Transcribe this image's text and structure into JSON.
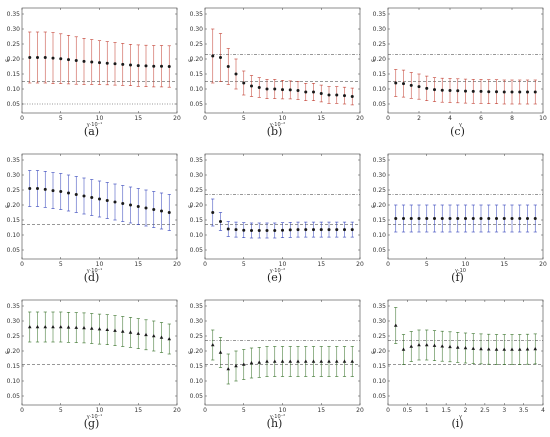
{
  "panels": [
    {
      "caption": "(a)"
    },
    {
      "caption": "(b)"
    },
    {
      "caption": "(c)"
    },
    {
      "caption": "(d)"
    },
    {
      "caption": "(e)"
    },
    {
      "caption": "(f)"
    },
    {
      "caption": "(g)"
    },
    {
      "caption": "(h)"
    },
    {
      "caption": "(i)"
    }
  ],
  "chart_data": [
    {
      "type": "scatter",
      "color": "#c0392b",
      "marker": "circle",
      "ylabel": "ε",
      "xlabel": "γ·10⁻¹",
      "xlim": [
        0,
        20
      ],
      "ylim": [
        0.02,
        0.37
      ],
      "xticks": [
        0,
        5,
        10,
        15,
        20
      ],
      "yticks": [
        0.05,
        0.1,
        0.15,
        0.2,
        0.25,
        0.3,
        0.35
      ],
      "hlines": [
        {
          "y": 0.125,
          "style": "dashed"
        },
        {
          "y": 0.05,
          "style": "dotted"
        }
      ],
      "series": [
        {
          "x": [
            1,
            2,
            3,
            4,
            5,
            6,
            7,
            8,
            9,
            10,
            11,
            12,
            13,
            14,
            15,
            16,
            17,
            18,
            19
          ],
          "y": [
            0.205,
            0.205,
            0.205,
            0.203,
            0.201,
            0.198,
            0.195,
            0.192,
            0.19,
            0.188,
            0.186,
            0.184,
            0.182,
            0.18,
            0.178,
            0.177,
            0.176,
            0.176,
            0.175
          ],
          "err": [
            0.085,
            0.085,
            0.085,
            0.085,
            0.083,
            0.081,
            0.079,
            0.077,
            0.075,
            0.073,
            0.072,
            0.071,
            0.07,
            0.069,
            0.069,
            0.069,
            0.069,
            0.069,
            0.069
          ]
        }
      ]
    },
    {
      "type": "scatter",
      "color": "#c0392b",
      "marker": "circle",
      "ylabel": "ε",
      "xlabel": "γ·10⁻²",
      "xlim": [
        0,
        20
      ],
      "ylim": [
        0.02,
        0.37
      ],
      "xticks": [
        0,
        5,
        10,
        15,
        20
      ],
      "yticks": [
        0.05,
        0.1,
        0.15,
        0.2,
        0.25,
        0.3,
        0.35
      ],
      "hlines": [
        {
          "y": 0.215,
          "style": "dashdot"
        },
        {
          "y": 0.125,
          "style": "dashed"
        }
      ],
      "series": [
        {
          "x": [
            1,
            2,
            3,
            4,
            5,
            6,
            7,
            8,
            9,
            10,
            11,
            12,
            13,
            14,
            15,
            16,
            17,
            18,
            19
          ],
          "y": [
            0.21,
            0.205,
            0.175,
            0.15,
            0.12,
            0.11,
            0.105,
            0.1,
            0.1,
            0.098,
            0.097,
            0.095,
            0.09,
            0.09,
            0.085,
            0.08,
            0.08,
            0.078,
            0.075
          ],
          "err": [
            0.09,
            0.08,
            0.06,
            0.05,
            0.04,
            0.035,
            0.033,
            0.032,
            0.032,
            0.031,
            0.03,
            0.03,
            0.029,
            0.029,
            0.028,
            0.028,
            0.028,
            0.028,
            0.028
          ]
        }
      ]
    },
    {
      "type": "scatter",
      "color": "#c0392b",
      "marker": "circle",
      "ylabel": "ε",
      "xlabel": "γ",
      "xlim": [
        0,
        10
      ],
      "ylim": [
        0.02,
        0.37
      ],
      "xticks": [
        0,
        2,
        4,
        6,
        8,
        10
      ],
      "yticks": [
        0.05,
        0.1,
        0.15,
        0.2,
        0.25,
        0.3,
        0.35
      ],
      "hlines": [
        {
          "y": 0.215,
          "style": "dashdot"
        },
        {
          "y": 0.125,
          "style": "dashed"
        }
      ],
      "series": [
        {
          "x": [
            0.5,
            1,
            1.5,
            2,
            2.5,
            3,
            3.5,
            4,
            4.5,
            5,
            5.5,
            6,
            6.5,
            7,
            7.5,
            8,
            8.5,
            9,
            9.5
          ],
          "y": [
            0.12,
            0.118,
            0.112,
            0.108,
            0.102,
            0.098,
            0.096,
            0.095,
            0.094,
            0.093,
            0.092,
            0.092,
            0.091,
            0.091,
            0.09,
            0.09,
            0.09,
            0.09,
            0.09
          ],
          "err": [
            0.045,
            0.045,
            0.043,
            0.042,
            0.041,
            0.04,
            0.04,
            0.04,
            0.04,
            0.04,
            0.04,
            0.04,
            0.04,
            0.04,
            0.04,
            0.04,
            0.04,
            0.04,
            0.04
          ]
        }
      ]
    },
    {
      "type": "scatter",
      "color": "#2c3db8",
      "marker": "circle",
      "ylabel": "ε",
      "xlabel": "γ·10⁻¹",
      "xlim": [
        0,
        20
      ],
      "ylim": [
        0.02,
        0.37
      ],
      "xticks": [
        0,
        5,
        10,
        15,
        20
      ],
      "yticks": [
        0.05,
        0.1,
        0.15,
        0.2,
        0.25,
        0.3,
        0.35
      ],
      "hlines": [
        {
          "y": 0.135,
          "style": "dashed"
        }
      ],
      "series": [
        {
          "x": [
            1,
            2,
            3,
            4,
            5,
            6,
            7,
            8,
            9,
            10,
            11,
            12,
            13,
            14,
            15,
            16,
            17,
            18,
            19
          ],
          "y": [
            0.255,
            0.255,
            0.252,
            0.248,
            0.245,
            0.24,
            0.235,
            0.23,
            0.225,
            0.22,
            0.215,
            0.21,
            0.205,
            0.2,
            0.195,
            0.19,
            0.185,
            0.18,
            0.175
          ],
          "err": [
            0.06,
            0.06,
            0.06,
            0.06,
            0.06,
            0.06,
            0.06,
            0.06,
            0.06,
            0.06,
            0.06,
            0.06,
            0.06,
            0.06,
            0.06,
            0.06,
            0.06,
            0.06,
            0.06
          ]
        }
      ]
    },
    {
      "type": "scatter",
      "color": "#2c3db8",
      "marker": "circle",
      "ylabel": "ε",
      "xlabel": "γ·10⁻²",
      "xlim": [
        0,
        20
      ],
      "ylim": [
        0.02,
        0.37
      ],
      "xticks": [
        0,
        5,
        10,
        15,
        20
      ],
      "yticks": [
        0.05,
        0.1,
        0.15,
        0.2,
        0.25,
        0.3,
        0.35
      ],
      "hlines": [
        {
          "y": 0.235,
          "style": "dashdot"
        },
        {
          "y": 0.135,
          "style": "dashed"
        }
      ],
      "series": [
        {
          "x": [
            1,
            2,
            3,
            4,
            5,
            6,
            7,
            8,
            9,
            10,
            11,
            12,
            13,
            14,
            15,
            16,
            17,
            18,
            19
          ],
          "y": [
            0.175,
            0.145,
            0.12,
            0.118,
            0.116,
            0.115,
            0.115,
            0.115,
            0.115,
            0.116,
            0.117,
            0.118,
            0.118,
            0.118,
            0.118,
            0.118,
            0.118,
            0.118,
            0.118
          ],
          "err": [
            0.045,
            0.03,
            0.025,
            0.025,
            0.025,
            0.025,
            0.025,
            0.025,
            0.025,
            0.025,
            0.025,
            0.025,
            0.025,
            0.025,
            0.025,
            0.025,
            0.025,
            0.025,
            0.025
          ]
        }
      ]
    },
    {
      "type": "scatter",
      "color": "#2c3db8",
      "marker": "circle",
      "ylabel": "ε",
      "xlabel": "γ·10",
      "xlim": [
        0,
        20
      ],
      "ylim": [
        0.02,
        0.37
      ],
      "xticks": [
        0,
        5,
        10,
        15,
        20
      ],
      "yticks": [
        0.05,
        0.1,
        0.15,
        0.2,
        0.25,
        0.3,
        0.35
      ],
      "hlines": [
        {
          "y": 0.235,
          "style": "dashdot"
        },
        {
          "y": 0.135,
          "style": "dashed"
        }
      ],
      "series": [
        {
          "x": [
            1,
            2,
            3,
            4,
            5,
            6,
            7,
            8,
            9,
            10,
            11,
            12,
            13,
            14,
            15,
            16,
            17,
            18,
            19
          ],
          "y": [
            0.155,
            0.155,
            0.155,
            0.155,
            0.155,
            0.155,
            0.155,
            0.155,
            0.155,
            0.155,
            0.155,
            0.155,
            0.155,
            0.155,
            0.155,
            0.155,
            0.155,
            0.155,
            0.155
          ],
          "err": [
            0.045,
            0.045,
            0.045,
            0.045,
            0.045,
            0.045,
            0.045,
            0.045,
            0.045,
            0.045,
            0.045,
            0.045,
            0.045,
            0.045,
            0.045,
            0.045,
            0.045,
            0.045,
            0.045
          ]
        }
      ]
    },
    {
      "type": "scatter",
      "color": "#2e6b1f",
      "marker": "triangle",
      "ylabel": "ε",
      "xlabel": "γ·10⁻¹",
      "xlim": [
        0,
        20
      ],
      "ylim": [
        0.02,
        0.37
      ],
      "xticks": [
        0,
        5,
        10,
        15,
        20
      ],
      "yticks": [
        0.05,
        0.1,
        0.15,
        0.2,
        0.25,
        0.3,
        0.35
      ],
      "hlines": [
        {
          "y": 0.155,
          "style": "dashed"
        }
      ],
      "series": [
        {
          "x": [
            1,
            2,
            3,
            4,
            5,
            6,
            7,
            8,
            9,
            10,
            11,
            12,
            13,
            14,
            15,
            16,
            17,
            18,
            19
          ],
          "y": [
            0.28,
            0.28,
            0.28,
            0.28,
            0.28,
            0.279,
            0.278,
            0.277,
            0.275,
            0.273,
            0.271,
            0.268,
            0.265,
            0.262,
            0.258,
            0.254,
            0.25,
            0.245,
            0.24
          ],
          "err": [
            0.05,
            0.05,
            0.05,
            0.05,
            0.05,
            0.05,
            0.05,
            0.05,
            0.05,
            0.05,
            0.05,
            0.05,
            0.05,
            0.05,
            0.05,
            0.05,
            0.05,
            0.05,
            0.05
          ]
        }
      ]
    },
    {
      "type": "scatter",
      "color": "#2e6b1f",
      "marker": "triangle",
      "ylabel": "ε",
      "xlabel": "γ·10⁻²",
      "xlim": [
        0,
        20
      ],
      "ylim": [
        0.02,
        0.37
      ],
      "xticks": [
        0,
        5,
        10,
        15,
        20
      ],
      "yticks": [
        0.05,
        0.1,
        0.15,
        0.2,
        0.25,
        0.3,
        0.35
      ],
      "hlines": [
        {
          "y": 0.235,
          "style": "dashdot"
        },
        {
          "y": 0.155,
          "style": "dashed"
        }
      ],
      "series": [
        {
          "x": [
            1,
            2,
            3,
            4,
            5,
            6,
            7,
            8,
            9,
            10,
            11,
            12,
            13,
            14,
            15,
            16,
            17,
            18,
            19
          ],
          "y": [
            0.22,
            0.195,
            0.14,
            0.15,
            0.155,
            0.16,
            0.162,
            0.165,
            0.165,
            0.165,
            0.165,
            0.165,
            0.165,
            0.165,
            0.165,
            0.165,
            0.165,
            0.165,
            0.165
          ],
          "err": [
            0.05,
            0.05,
            0.05,
            0.05,
            0.05,
            0.05,
            0.05,
            0.05,
            0.05,
            0.05,
            0.05,
            0.05,
            0.05,
            0.05,
            0.05,
            0.05,
            0.05,
            0.05,
            0.05
          ]
        }
      ]
    },
    {
      "type": "scatter",
      "color": "#2e6b1f",
      "marker": "triangle",
      "ylabel": "ε",
      "xlabel": "γ",
      "xlim": [
        0,
        4
      ],
      "ylim": [
        0.02,
        0.37
      ],
      "xticks": [
        0,
        0.5,
        1.0,
        1.5,
        2.0,
        2.5,
        3.0,
        3.5,
        4.0
      ],
      "yticks": [
        0.05,
        0.1,
        0.15,
        0.2,
        0.25,
        0.3,
        0.35
      ],
      "hlines": [
        {
          "y": 0.235,
          "style": "dashdot"
        },
        {
          "y": 0.155,
          "style": "dashed"
        }
      ],
      "series": [
        {
          "x": [
            0.2,
            0.4,
            0.6,
            0.8,
            1.0,
            1.2,
            1.4,
            1.6,
            1.8,
            2.0,
            2.2,
            2.4,
            2.6,
            2.8,
            3.0,
            3.2,
            3.4,
            3.6,
            3.8
          ],
          "y": [
            0.285,
            0.205,
            0.215,
            0.22,
            0.22,
            0.218,
            0.216,
            0.214,
            0.212,
            0.21,
            0.208,
            0.207,
            0.206,
            0.205,
            0.205,
            0.205,
            0.205,
            0.206,
            0.207
          ],
          "err": [
            0.06,
            0.05,
            0.05,
            0.05,
            0.05,
            0.05,
            0.05,
            0.05,
            0.05,
            0.05,
            0.05,
            0.05,
            0.05,
            0.05,
            0.05,
            0.05,
            0.05,
            0.05,
            0.05
          ]
        }
      ]
    }
  ]
}
